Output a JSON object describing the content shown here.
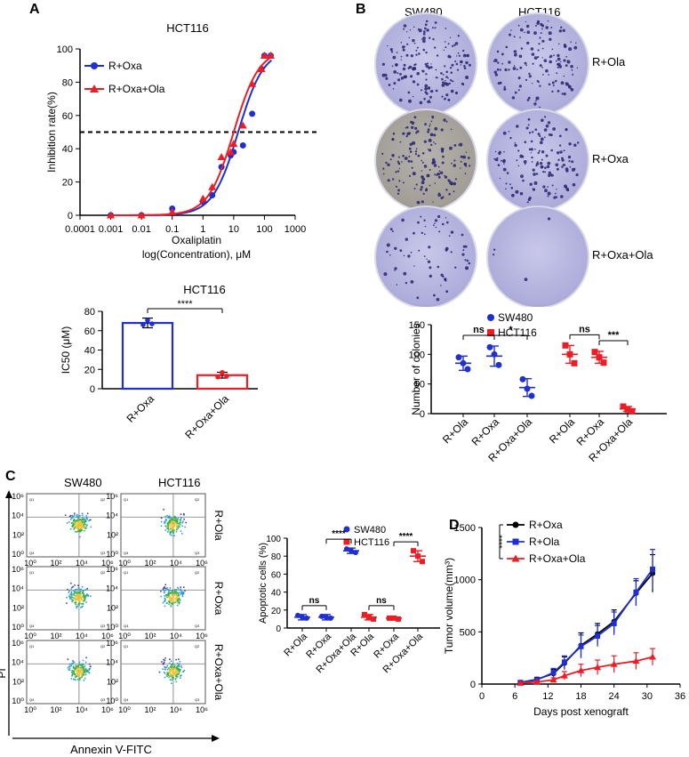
{
  "panels": {
    "A": "A",
    "B": "B",
    "C": "C",
    "D": "D"
  },
  "colors": {
    "blue": "#1f2fd0",
    "red": "#ee1c24",
    "plate": "#b9b8e0",
    "dark_plate": "#aba69e",
    "flow_green": "#2ea84a"
  },
  "chart_data": [
    {
      "id": "A-dose-response",
      "type": "line",
      "title": "HCT116",
      "xlabel": "Oxaliplatin",
      "xlabel2": "log(Concentration), μM",
      "ylabel": "Inhibition rate(%)",
      "x_scale": "log",
      "xlim": [
        0.0001,
        1000
      ],
      "x_ticks": [
        "0.0001",
        "0.001",
        "0.01",
        "0.1",
        "1",
        "10",
        "100",
        "1000"
      ],
      "ylim": [
        0,
        100
      ],
      "y_ticks": [
        "0",
        "20",
        "40",
        "60",
        "80",
        "100"
      ],
      "reference_line_y": 50,
      "legend_position": "top-left",
      "series": [
        {
          "name": "R+Oxa",
          "color": "#1f2fd0",
          "marker": "circle",
          "x": [
            0.001,
            0.01,
            0.1,
            1,
            2,
            4,
            8,
            10,
            20,
            40,
            80,
            100,
            160
          ],
          "y": [
            0,
            0,
            4,
            8,
            12,
            29,
            36,
            38,
            42,
            61,
            88,
            96,
            96
          ]
        },
        {
          "name": "R+Oxa+Ola",
          "color": "#ee1c24",
          "marker": "triangle",
          "x": [
            0.001,
            0.01,
            0.1,
            1,
            2,
            4,
            8,
            10,
            20,
            40,
            80,
            100,
            160
          ],
          "y": [
            0,
            0,
            2,
            10,
            17,
            35,
            38,
            43,
            54,
            79,
            88,
            96,
            96
          ]
        }
      ]
    },
    {
      "id": "A-ic50",
      "type": "bar",
      "title": "HCT116",
      "ylabel": "IC50 (μM)",
      "categories": [
        "R+Oxa",
        "R+Oxa+Ola"
      ],
      "values": [
        68,
        14
      ],
      "errors": [
        5,
        3
      ],
      "colors": [
        "#1f2fd0",
        "#ee1c24"
      ],
      "ylim": [
        0,
        80
      ],
      "y_ticks": [
        "0",
        "20",
        "40",
        "60",
        "80"
      ],
      "significance": "****"
    },
    {
      "id": "B-colonies",
      "type": "scatter",
      "ylabel": "Number of colonies",
      "categories": [
        "R+Ola",
        "R+Oxa",
        "R+Oxa+Ola",
        "R+Ola",
        "R+Oxa",
        "R+Oxa+Ola"
      ],
      "ylim": [
        0,
        150
      ],
      "y_ticks": [
        "0",
        "50",
        "100",
        "150"
      ],
      "legend_position": "top",
      "series": [
        {
          "name": "SW480",
          "color": "#1f2fd0",
          "marker": "circle",
          "means": [
            85,
            97,
            44
          ],
          "errors": [
            12,
            17,
            15
          ],
          "points": [
            [
              95,
              75,
              85
            ],
            [
              112,
              82,
              100
            ],
            [
              58,
              30,
              42
            ]
          ]
        },
        {
          "name": "HCT116",
          "color": "#ee1c24",
          "marker": "square",
          "means": [
            100,
            95,
            8
          ],
          "errors": [
            15,
            10,
            4
          ],
          "points": [
            [
              115,
              85,
              100
            ],
            [
              104,
              86,
              95
            ],
            [
              12,
              4,
              7
            ]
          ]
        }
      ],
      "significance": [
        {
          "pair": [
            0,
            1
          ],
          "label": "ns"
        },
        {
          "pair": [
            1,
            2
          ],
          "label": "*"
        },
        {
          "pair": [
            3,
            4
          ],
          "label": "ns"
        },
        {
          "pair": [
            4,
            5
          ],
          "label": "***"
        }
      ]
    },
    {
      "id": "C-apoptosis",
      "type": "scatter",
      "ylabel": "Apoptotic cells (%)",
      "categories": [
        "R+Ola",
        "R+Oxa",
        "R+Oxa+Ola",
        "R+Ola",
        "R+Oxa",
        "R+Oxa+Ola"
      ],
      "ylim": [
        0,
        100
      ],
      "y_ticks": [
        "0",
        "20",
        "40",
        "60",
        "80",
        "100"
      ],
      "legend_position": "top",
      "series": [
        {
          "name": "SW480",
          "color": "#1f2fd0",
          "marker": "circle",
          "means": [
            12,
            12,
            86
          ],
          "errors": [
            3,
            3,
            3
          ],
          "points": [
            [
              14,
              11,
              12
            ],
            [
              13,
              11,
              12
            ],
            [
              88,
              84,
              86
            ]
          ]
        },
        {
          "name": "HCT116",
          "color": "#ee1c24",
          "marker": "square",
          "means": [
            12,
            11,
            80
          ],
          "errors": [
            3,
            1,
            6
          ],
          "points": [
            [
              15,
              10,
              12
            ],
            [
              11,
              10,
              11
            ],
            [
              86,
              74,
              80
            ]
          ]
        }
      ],
      "significance": [
        {
          "pair": [
            0,
            1
          ],
          "label": "ns"
        },
        {
          "pair": [
            1,
            2
          ],
          "label": "****"
        },
        {
          "pair": [
            3,
            4
          ],
          "label": "ns"
        },
        {
          "pair": [
            4,
            5
          ],
          "label": "****"
        }
      ]
    },
    {
      "id": "D-tumor-volume",
      "type": "line",
      "xlabel": "Days post xenograft",
      "ylabel": "Tumor volume(mm³)",
      "xlim": [
        0,
        36
      ],
      "x_ticks": [
        "0",
        "6",
        "12",
        "18",
        "24",
        "30",
        "36"
      ],
      "ylim": [
        0,
        1500
      ],
      "y_ticks": [
        "0",
        "500",
        "1000",
        "1500"
      ],
      "legend_position": "top-left",
      "significance": "****",
      "series": [
        {
          "name": "R+Oxa",
          "color": "#000000",
          "marker": "circle",
          "x": [
            7,
            10,
            13,
            15,
            18,
            21,
            24,
            28,
            31
          ],
          "y": [
            15,
            45,
            100,
            200,
            370,
            480,
            600,
            870,
            1060
          ],
          "err": [
            10,
            20,
            40,
            60,
            120,
            100,
            110,
            120,
            180
          ]
        },
        {
          "name": "R+Ola",
          "color": "#1f2fd0",
          "marker": "square",
          "x": [
            7,
            10,
            13,
            15,
            18,
            21,
            24,
            28,
            31
          ],
          "y": [
            15,
            40,
            110,
            210,
            360,
            460,
            580,
            880,
            1100
          ],
          "err": [
            10,
            20,
            40,
            60,
            110,
            100,
            110,
            130,
            190
          ]
        },
        {
          "name": "R+Oxa+Ola",
          "color": "#ee1c24",
          "marker": "triangle",
          "x": [
            7,
            10,
            13,
            15,
            18,
            21,
            24,
            28,
            31
          ],
          "y": [
            10,
            20,
            40,
            80,
            130,
            160,
            190,
            220,
            260
          ],
          "err": [
            5,
            10,
            20,
            40,
            60,
            70,
            80,
            80,
            80
          ]
        }
      ]
    }
  ],
  "colony_plates": {
    "col_labels": [
      "SW480",
      "HCT116"
    ],
    "row_labels": [
      "R+Ola",
      "R+Oxa",
      "R+Oxa+Ola"
    ]
  },
  "flow": {
    "col_labels": [
      "SW480",
      "HCT116"
    ],
    "row_labels": [
      "R+Ola",
      "R+Oxa",
      "R+Oxa+Ola"
    ],
    "x_axis_label": "Annexin V-FITC",
    "y_axis_label": "PI",
    "x_ticks": [
      "10⁰",
      "10²",
      "10⁴",
      "10⁶"
    ],
    "y_ticks": [
      "10⁶",
      "10⁴",
      "10²",
      "10⁰"
    ],
    "quadrant_values": [
      [
        [
          "Q1",
          "Q2",
          "Q4",
          "Q3"
        ],
        [
          "Q1",
          "Q2",
          "Q4",
          "Q3"
        ]
      ],
      [
        [
          "Q1",
          "Q2",
          "Q4",
          "Q3"
        ],
        [
          "Q1",
          "Q2",
          "Q4",
          "Q3"
        ]
      ],
      [
        [
          "Q1",
          "Q2",
          "Q4",
          "Q3"
        ],
        [
          "Q1",
          "Q2",
          "Q4",
          "Q3"
        ]
      ]
    ]
  }
}
